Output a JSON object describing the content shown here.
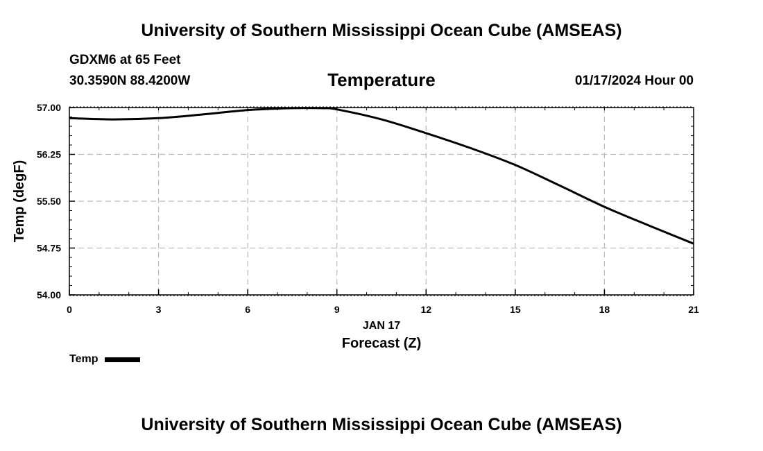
{
  "header": {
    "title": "University of Southern Mississippi Ocean Cube (AMSEAS)",
    "station": "GDXM6 at 65 Feet",
    "coords": "30.3590N  88.4200W",
    "datetime": "01/17/2024 Hour 00"
  },
  "footer": {
    "title": "University of Southern Mississippi Ocean Cube (AMSEAS)"
  },
  "chart_data": {
    "type": "line",
    "title": "Temperature",
    "xlabel": "Forecast (Z)",
    "xdate_label": "JAN 17",
    "ylabel": "Temp (degF)",
    "xlim": [
      0,
      21
    ],
    "ylim": [
      54.0,
      57.0
    ],
    "xticks": [
      0,
      3,
      6,
      9,
      12,
      15,
      18,
      21
    ],
    "xtick_labels": [
      "0",
      "3",
      "6",
      "9",
      "12",
      "15",
      "18",
      "21"
    ],
    "yticks": [
      54.0,
      54.75,
      55.5,
      56.25,
      57.0
    ],
    "ytick_labels": [
      "54.00",
      "54.75",
      "55.50",
      "56.25",
      "57.00"
    ],
    "grid": true,
    "legend_position": "bottom-left",
    "series": [
      {
        "name": "Temp",
        "color": "#000000",
        "x": [
          0,
          1.5,
          3,
          4.5,
          6,
          7.5,
          8.5,
          9,
          10.5,
          12,
          13.5,
          15,
          16.5,
          18,
          19.5,
          21
        ],
        "values": [
          56.83,
          56.81,
          56.83,
          56.89,
          56.96,
          56.99,
          56.99,
          56.97,
          56.81,
          56.59,
          56.35,
          56.08,
          55.75,
          55.41,
          55.11,
          54.82
        ]
      }
    ]
  }
}
